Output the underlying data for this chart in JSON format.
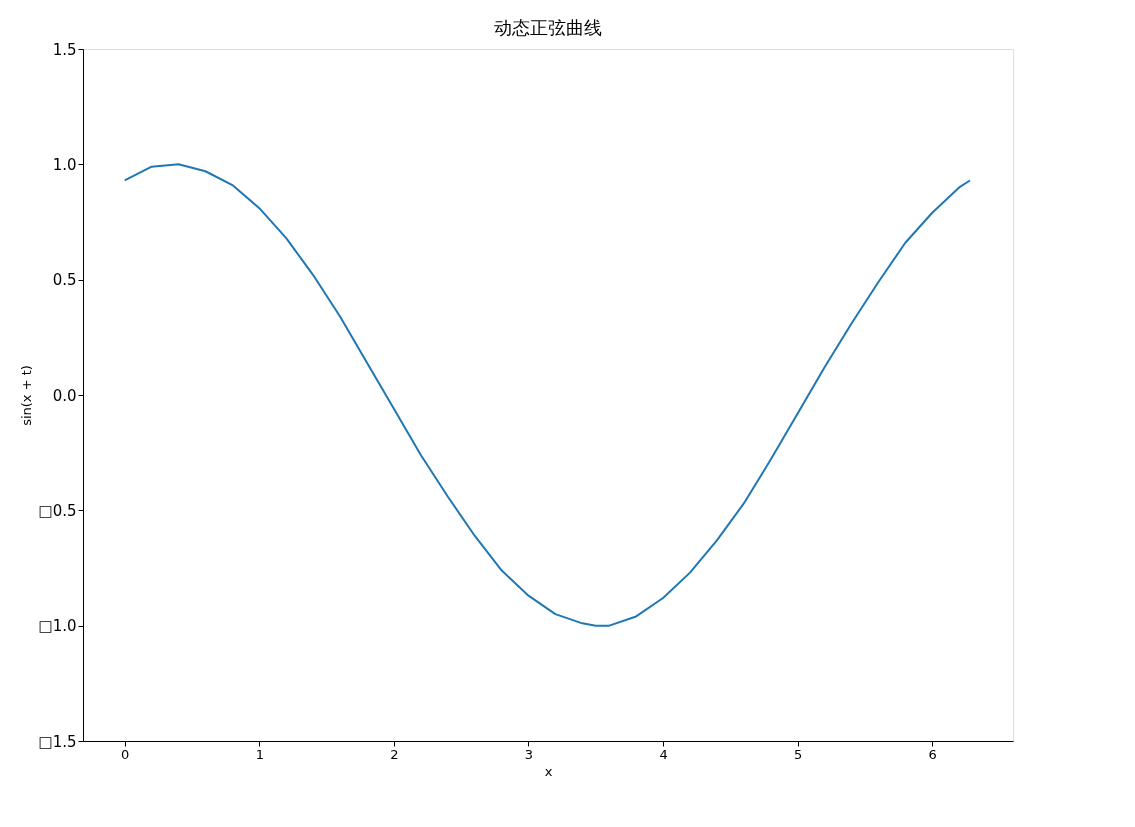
{
  "chart_data": {
    "type": "line",
    "title": "动态正弦曲线",
    "xlabel": "x",
    "ylabel": "sin(x + t)",
    "x": [
      0,
      0.2,
      0.4,
      0.6,
      0.8,
      1.0,
      1.2,
      1.4,
      1.6,
      1.8,
      2.0,
      2.2,
      2.4,
      2.6,
      2.8,
      3.0,
      3.2,
      3.4,
      3.5,
      3.6,
      3.8,
      4.0,
      4.2,
      4.4,
      4.6,
      4.8,
      5.0,
      5.2,
      5.4,
      5.6,
      5.8,
      6.0,
      6.2,
      6.28
    ],
    "series": [
      {
        "color": "#1f77b4",
        "values": [
          0.93,
          0.99,
          1.0,
          0.97,
          0.91,
          0.81,
          0.68,
          0.52,
          0.34,
          0.14,
          -0.06,
          -0.26,
          -0.44,
          -0.61,
          -0.76,
          -0.87,
          -0.95,
          -0.99,
          -1.0,
          -1.0,
          -0.96,
          -0.88,
          -0.77,
          -0.63,
          -0.47,
          -0.28,
          -0.08,
          0.12,
          0.31,
          0.49,
          0.66,
          0.79,
          0.9,
          0.93
        ]
      }
    ],
    "xlim": [
      -0.31,
      6.6
    ],
    "xticks": [
      0,
      1,
      2,
      3,
      4,
      5,
      6
    ],
    "ylim": [
      -1.5,
      1.5
    ],
    "yticks": [
      {
        "value": -1.5,
        "label": "□1.5"
      },
      {
        "value": -1.0,
        "label": "□1.0"
      },
      {
        "value": -0.5,
        "label": "□0.5"
      },
      {
        "value": 0,
        "label": "0.0"
      },
      {
        "value": 0.5,
        "label": "0.5"
      },
      {
        "value": 1.0,
        "label": "1.0"
      },
      {
        "value": 1.5,
        "label": "1.5"
      }
    ],
    "grid": false,
    "legend": false,
    "line_style": "solid",
    "marker": "none"
  }
}
